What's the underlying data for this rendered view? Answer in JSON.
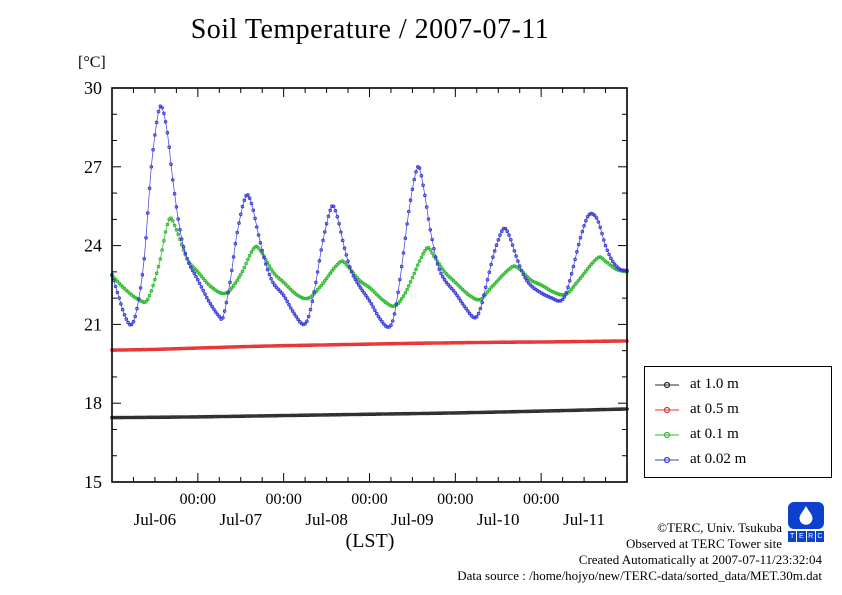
{
  "title": "Soil Temperature / 2007-07-11",
  "y_unit_label": "[°C]",
  "x_axis_label": "(LST)",
  "footer": {
    "copyright": "©TERC, Univ. Tsukuba",
    "observed": "Observed at TERC Tower site",
    "created": "Created Automatically at 2007-07-11/23:32:04",
    "datasource": "Data source : /home/hojyo/new/TERC-data/sorted_data/MET.30m.dat"
  },
  "logo": {
    "letters": [
      "T",
      "E",
      "R",
      "C"
    ]
  },
  "chart_data": {
    "type": "line",
    "title": "Soil Temperature / 2007-07-11",
    "xlabel": "(LST)",
    "ylabel": "[°C]",
    "ylim": [
      15,
      30
    ],
    "yticks": [
      15,
      18,
      21,
      24,
      27,
      30
    ],
    "x_hours_range": [
      0,
      144
    ],
    "x_major_tick_hours": 24,
    "x_minor_tick_hours": 6,
    "x_midnight_label": "00:00",
    "x_day_labels": [
      "Jul-06",
      "Jul-07",
      "Jul-08",
      "Jul-09",
      "Jul-10",
      "Jul-11"
    ],
    "grid": false,
    "legend_position": "right",
    "marker": "open-circle",
    "sample_step_hours": 0.5,
    "series": [
      {
        "name": "at 1.0 m",
        "color": "#2b2b2b",
        "points": [
          [
            0,
            17.45
          ],
          [
            24,
            17.48
          ],
          [
            48,
            17.53
          ],
          [
            72,
            17.58
          ],
          [
            96,
            17.63
          ],
          [
            120,
            17.7
          ],
          [
            144,
            17.78
          ]
        ]
      },
      {
        "name": "at 0.5 m",
        "color": "#e63232",
        "points": [
          [
            0,
            20.02
          ],
          [
            12,
            20.05
          ],
          [
            24,
            20.1
          ],
          [
            36,
            20.15
          ],
          [
            48,
            20.19
          ],
          [
            60,
            20.22
          ],
          [
            72,
            20.25
          ],
          [
            84,
            20.28
          ],
          [
            96,
            20.3
          ],
          [
            108,
            20.32
          ],
          [
            120,
            20.33
          ],
          [
            132,
            20.35
          ],
          [
            144,
            20.37
          ]
        ]
      },
      {
        "name": "at 0.1 m",
        "color": "#2eb82e",
        "points": [
          [
            0,
            22.85
          ],
          [
            4,
            22.3
          ],
          [
            8,
            21.9
          ],
          [
            10,
            21.95
          ],
          [
            13,
            23.2
          ],
          [
            16,
            25.0
          ],
          [
            18,
            24.6
          ],
          [
            21,
            23.5
          ],
          [
            24,
            23.0
          ],
          [
            28,
            22.4
          ],
          [
            32,
            22.2
          ],
          [
            36,
            22.9
          ],
          [
            40,
            23.95
          ],
          [
            42,
            23.7
          ],
          [
            45,
            23.0
          ],
          [
            48,
            22.6
          ],
          [
            52,
            22.1
          ],
          [
            55,
            22.0
          ],
          [
            58,
            22.4
          ],
          [
            64,
            23.4
          ],
          [
            66,
            23.2
          ],
          [
            69,
            22.7
          ],
          [
            72,
            22.4
          ],
          [
            76,
            21.9
          ],
          [
            79,
            21.7
          ],
          [
            82,
            22.2
          ],
          [
            88,
            23.9
          ],
          [
            90,
            23.6
          ],
          [
            93,
            23.0
          ],
          [
            96,
            22.6
          ],
          [
            100,
            22.1
          ],
          [
            103,
            21.95
          ],
          [
            106,
            22.4
          ],
          [
            112,
            23.2
          ],
          [
            114,
            23.1
          ],
          [
            117,
            22.7
          ],
          [
            120,
            22.5
          ],
          [
            124,
            22.2
          ],
          [
            127,
            22.15
          ],
          [
            130,
            22.6
          ],
          [
            136,
            23.55
          ],
          [
            138,
            23.4
          ],
          [
            141,
            23.1
          ],
          [
            144,
            23.0
          ]
        ]
      },
      {
        "name": "at 0.02 m",
        "color": "#3c3cd9",
        "points": [
          [
            0,
            22.9
          ],
          [
            2,
            22.0
          ],
          [
            4,
            21.2
          ],
          [
            5.5,
            21.0
          ],
          [
            7,
            21.6
          ],
          [
            9,
            23.5
          ],
          [
            11,
            27.0
          ],
          [
            13,
            29.1
          ],
          [
            14,
            29.25
          ],
          [
            15.5,
            28.3
          ],
          [
            17,
            26.5
          ],
          [
            19,
            24.6
          ],
          [
            21,
            23.5
          ],
          [
            24,
            22.7
          ],
          [
            27,
            21.9
          ],
          [
            30,
            21.3
          ],
          [
            31,
            21.25
          ],
          [
            33,
            22.6
          ],
          [
            35,
            24.5
          ],
          [
            37.5,
            25.9
          ],
          [
            39,
            25.6
          ],
          [
            41,
            24.4
          ],
          [
            43,
            23.3
          ],
          [
            45,
            22.6
          ],
          [
            48,
            22.1
          ],
          [
            51,
            21.4
          ],
          [
            53.5,
            21.0
          ],
          [
            55,
            21.3
          ],
          [
            57,
            22.6
          ],
          [
            59,
            24.2
          ],
          [
            61.5,
            25.5
          ],
          [
            63,
            25.1
          ],
          [
            65,
            23.9
          ],
          [
            67,
            23.0
          ],
          [
            69,
            22.5
          ],
          [
            72,
            21.9
          ],
          [
            75,
            21.2
          ],
          [
            77.5,
            20.9
          ],
          [
            79,
            21.4
          ],
          [
            81,
            23.2
          ],
          [
            83,
            25.3
          ],
          [
            85.5,
            27.0
          ],
          [
            87,
            26.3
          ],
          [
            89,
            24.6
          ],
          [
            91,
            23.3
          ],
          [
            93,
            22.7
          ],
          [
            96,
            22.2
          ],
          [
            99,
            21.6
          ],
          [
            101.5,
            21.25
          ],
          [
            103,
            21.6
          ],
          [
            105,
            22.7
          ],
          [
            107,
            23.8
          ],
          [
            109.5,
            24.65
          ],
          [
            111,
            24.4
          ],
          [
            113,
            23.6
          ],
          [
            115,
            22.9
          ],
          [
            117,
            22.5
          ],
          [
            120,
            22.2
          ],
          [
            123,
            22.0
          ],
          [
            125.5,
            21.9
          ],
          [
            127,
            22.2
          ],
          [
            129,
            23.2
          ],
          [
            131,
            24.3
          ],
          [
            133,
            25.1
          ],
          [
            134.5,
            25.2
          ],
          [
            136,
            24.9
          ],
          [
            138,
            24.0
          ],
          [
            140,
            23.4
          ],
          [
            142,
            23.1
          ],
          [
            144,
            23.05
          ]
        ]
      }
    ]
  }
}
